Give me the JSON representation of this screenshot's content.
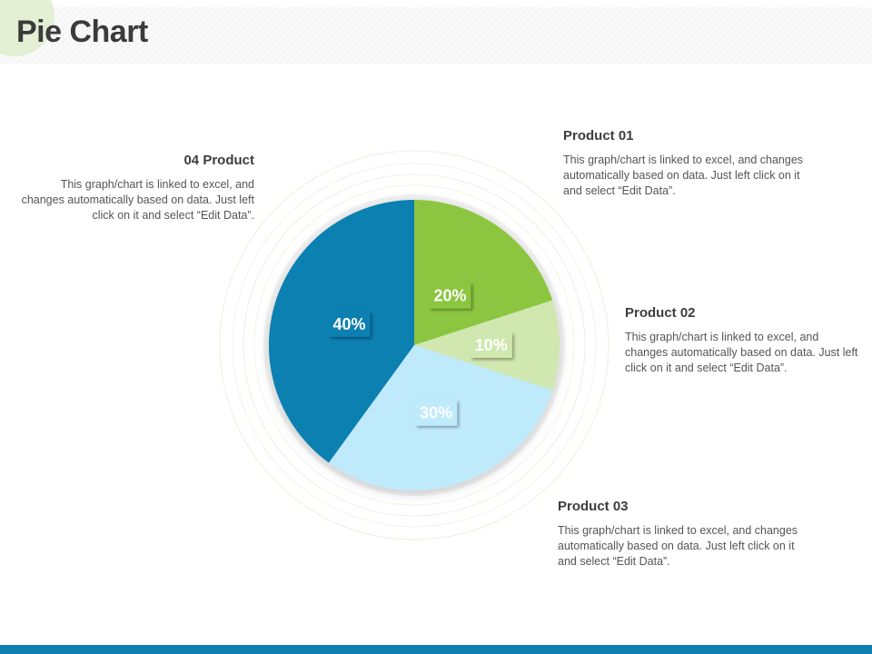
{
  "header": {
    "title": "Pie Chart"
  },
  "colors": {
    "footer": "#0f7fb1",
    "slice_product_01": "#8cc63f",
    "slice_product_02": "#d0e7b0",
    "slice_product_03": "#bfeafc",
    "slice_product_04": "#0a80b2"
  },
  "callouts": [
    {
      "key": "product_01",
      "heading": "Product 01",
      "body": "This graph/chart is linked to excel, and changes automatically based on data. Just left click on it and select “Edit Data”."
    },
    {
      "key": "product_02",
      "heading": "Product 02",
      "body": "This graph/chart is linked to excel, and changes automatically based on data. Just left click on it and select “Edit Data”."
    },
    {
      "key": "product_03",
      "heading": "Product 03",
      "body": "This graph/chart is linked to excel, and changes automatically based on data. Just left click on it and select “Edit Data”."
    },
    {
      "key": "product_04",
      "heading": "04 Product",
      "body": "This graph/chart is linked to excel, and changes automatically based on data. Just left click on it and select “Edit Data”."
    }
  ],
  "chart_data": {
    "type": "pie",
    "categories": [
      "Product 01",
      "Product 02",
      "Product 03",
      "04 Product"
    ],
    "values": [
      20,
      10,
      30,
      40
    ],
    "labels": [
      "20%",
      "10%",
      "30%",
      "40%"
    ],
    "colors": [
      "#8cc63f",
      "#d0e7b0",
      "#bfeafc",
      "#0a80b2"
    ],
    "start": "12 o'clock, clockwise",
    "title": ""
  }
}
